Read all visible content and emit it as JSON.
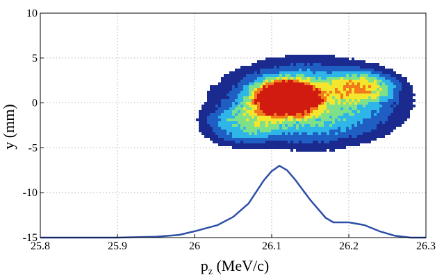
{
  "chart_data": {
    "type": "heatmap",
    "title": "",
    "xlabel_main": "p",
    "xlabel_sub": "z",
    "xlabel_unit": " (MeV/c)",
    "ylabel": "y (mm)",
    "xlim": [
      25.8,
      26.3
    ],
    "ylim": [
      -15,
      10
    ],
    "xticks": [
      "25.8",
      "25.9",
      "26",
      "26.1",
      "26.2",
      "26.3"
    ],
    "yticks": [
      "-15",
      "-10",
      "-5",
      "0",
      "5",
      "10"
    ],
    "grid": true,
    "colormap": [
      "#1b2a8f",
      "#1f5fc4",
      "#2fb6e8",
      "#7fe08a",
      "#f4e62c",
      "#f07a1c",
      "#d11a10"
    ],
    "line_color": "#2d4fa8",
    "density_blobs": [
      {
        "x": 26.15,
        "y": 0.0,
        "sx": 0.09,
        "sy": 3.6,
        "w": 0.55
      },
      {
        "x": 26.12,
        "y": 0.6,
        "sx": 0.035,
        "sy": 1.6,
        "w": 0.9
      },
      {
        "x": 26.22,
        "y": 1.8,
        "sx": 0.035,
        "sy": 1.4,
        "w": 0.35
      },
      {
        "x": 26.06,
        "y": -2.5,
        "sx": 0.04,
        "sy": 1.8,
        "w": 0.3
      }
    ],
    "series": [
      {
        "x": [
          25.8,
          25.9,
          25.95,
          25.98,
          26.0,
          26.03,
          26.05,
          26.07,
          26.09,
          26.1,
          26.11,
          26.12,
          26.13,
          26.15,
          26.17,
          26.18,
          26.2,
          26.22,
          26.24,
          26.26,
          26.28,
          26.3
        ],
        "values": [
          -15.0,
          -15.0,
          -14.9,
          -14.7,
          -14.3,
          -13.6,
          -12.7,
          -11.2,
          -8.6,
          -7.6,
          -7.0,
          -7.5,
          -8.5,
          -10.8,
          -12.8,
          -13.3,
          -13.3,
          -13.6,
          -14.3,
          -14.8,
          -15.0,
          -15.0
        ]
      }
    ]
  }
}
